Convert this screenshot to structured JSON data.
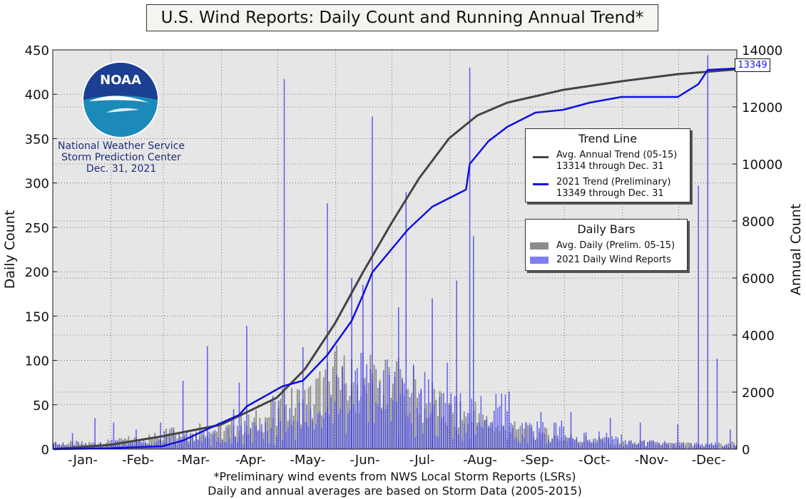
{
  "title": "U.S. Wind Reports: Daily Count and Running Annual Trend*",
  "footnote_line1": "*Preliminary wind events from NWS Local Storm Reports (LSRs)",
  "footnote_line2": "Daily and annual averages are based on Storm Data (2005-2015)",
  "logo": {
    "wordmark": "NOAA",
    "line1": "National Weather Service",
    "line2": "Storm Prediction Center",
    "line3": "Dec. 31, 2021"
  },
  "legend_trend": {
    "title": "Trend Line",
    "avg_line1": "Avg. Annual Trend (05-15)",
    "avg_line2": "13314 through Dec. 31",
    "y2021_line1": "2021 Trend (Preliminary)",
    "y2021_line2": "13349 through Dec. 31"
  },
  "legend_bars": {
    "title": "Daily Bars",
    "avg_label": "Avg. Daily (Prelim. 05-15)",
    "y2021_label": "2021 Daily Wind Reports"
  },
  "end_label": "13349",
  "chart_data": {
    "type": "bar",
    "xlabel": "",
    "ylabel_left": "Daily Count",
    "ylabel_right": "Annual Count",
    "ylim_left": [
      0,
      450
    ],
    "ylim_right": [
      0,
      14000
    ],
    "yticks_left": [
      0,
      50,
      100,
      150,
      200,
      250,
      300,
      350,
      400,
      450
    ],
    "yticks_right": [
      0,
      2000,
      4000,
      6000,
      8000,
      10000,
      12000,
      14000
    ],
    "month_labels": [
      "-Jan-",
      "-Feb-",
      "-Mar-",
      "-Apr-",
      "-May-",
      "-Jun-",
      "-Jul-",
      "-Aug-",
      "-Sep-",
      "-Oct-",
      "-Nov-",
      "-Dec-"
    ],
    "x_unit": "day of year",
    "xlim": [
      1,
      365
    ],
    "grid": true,
    "colors": {
      "avg_bar": "#8c8c8c",
      "bar_2021": "#3333ee",
      "avg_line": "#444444",
      "line_2021": "#1010e0",
      "plot_bg": "#e6e6e6"
    },
    "avg_daily_monthly": [
      6,
      9,
      16,
      24,
      45,
      82,
      75,
      47,
      25,
      15,
      8,
      6
    ],
    "daily_2021_spikes": [
      {
        "day": 11,
        "value": 18
      },
      {
        "day": 23,
        "value": 35
      },
      {
        "day": 33,
        "value": 30
      },
      {
        "day": 45,
        "value": 22
      },
      {
        "day": 58,
        "value": 30
      },
      {
        "day": 70,
        "value": 77
      },
      {
        "day": 83,
        "value": 116
      },
      {
        "day": 97,
        "value": 45
      },
      {
        "day": 100,
        "value": 75
      },
      {
        "day": 104,
        "value": 139
      },
      {
        "day": 118,
        "value": 60
      },
      {
        "day": 124,
        "value": 417
      },
      {
        "day": 134,
        "value": 115
      },
      {
        "day": 147,
        "value": 277
      },
      {
        "day": 160,
        "value": 193
      },
      {
        "day": 166,
        "value": 185
      },
      {
        "day": 171,
        "value": 375
      },
      {
        "day": 185,
        "value": 160
      },
      {
        "day": 189,
        "value": 290
      },
      {
        "day": 203,
        "value": 170
      },
      {
        "day": 216,
        "value": 190
      },
      {
        "day": 223,
        "value": 430
      },
      {
        "day": 225,
        "value": 240
      },
      {
        "day": 244,
        "value": 65
      },
      {
        "day": 261,
        "value": 42
      },
      {
        "day": 277,
        "value": 42
      },
      {
        "day": 298,
        "value": 35
      },
      {
        "day": 314,
        "value": 30
      },
      {
        "day": 334,
        "value": 28
      },
      {
        "day": 345,
        "value": 297
      },
      {
        "day": 350,
        "value": 444
      },
      {
        "day": 355,
        "value": 102
      },
      {
        "day": 362,
        "value": 22
      }
    ],
    "avg_trend_cumulative": [
      {
        "day": 1,
        "value": 0
      },
      {
        "day": 31,
        "value": 150
      },
      {
        "day": 59,
        "value": 450
      },
      {
        "day": 90,
        "value": 850
      },
      {
        "day": 120,
        "value": 1800
      },
      {
        "day": 135,
        "value": 2800
      },
      {
        "day": 151,
        "value": 4400
      },
      {
        "day": 166,
        "value": 6200
      },
      {
        "day": 181,
        "value": 7900
      },
      {
        "day": 196,
        "value": 9500
      },
      {
        "day": 212,
        "value": 10900
      },
      {
        "day": 227,
        "value": 11700
      },
      {
        "day": 243,
        "value": 12150
      },
      {
        "day": 273,
        "value": 12600
      },
      {
        "day": 304,
        "value": 12900
      },
      {
        "day": 334,
        "value": 13150
      },
      {
        "day": 365,
        "value": 13314
      }
    ],
    "trend_2021_cumulative": [
      {
        "day": 1,
        "value": 0
      },
      {
        "day": 31,
        "value": 30
      },
      {
        "day": 59,
        "value": 100
      },
      {
        "day": 70,
        "value": 300
      },
      {
        "day": 83,
        "value": 700
      },
      {
        "day": 100,
        "value": 1200
      },
      {
        "day": 104,
        "value": 1500
      },
      {
        "day": 123,
        "value": 2200
      },
      {
        "day": 134,
        "value": 2400
      },
      {
        "day": 147,
        "value": 3300
      },
      {
        "day": 160,
        "value": 4500
      },
      {
        "day": 166,
        "value": 5400
      },
      {
        "day": 171,
        "value": 6200
      },
      {
        "day": 190,
        "value": 7700
      },
      {
        "day": 203,
        "value": 8500
      },
      {
        "day": 221,
        "value": 9100
      },
      {
        "day": 223,
        "value": 10000
      },
      {
        "day": 233,
        "value": 10800
      },
      {
        "day": 243,
        "value": 11300
      },
      {
        "day": 258,
        "value": 11800
      },
      {
        "day": 273,
        "value": 11900
      },
      {
        "day": 287,
        "value": 12150
      },
      {
        "day": 304,
        "value": 12350
      },
      {
        "day": 334,
        "value": 12350
      },
      {
        "day": 345,
        "value": 12800
      },
      {
        "day": 350,
        "value": 13300
      },
      {
        "day": 365,
        "value": 13349
      }
    ]
  }
}
